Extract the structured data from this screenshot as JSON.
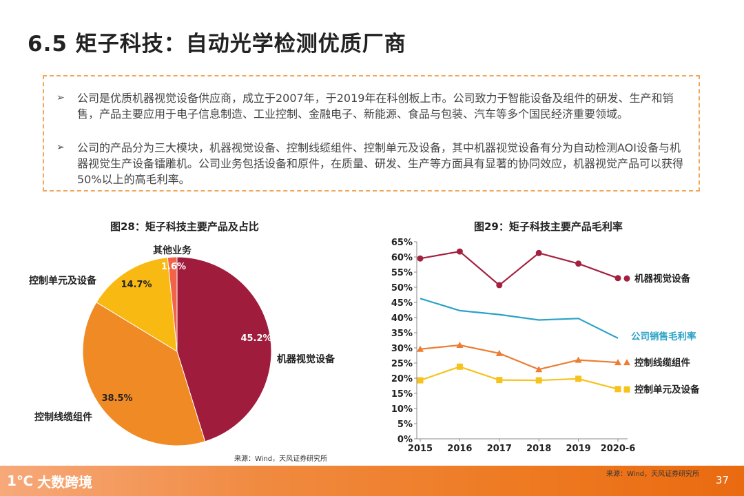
{
  "header": {
    "title": "6.5  矩子科技：自动光学检测优质厂商"
  },
  "bullets": [
    {
      "marker": "➢",
      "text": "公司是优质机器视觉设备供应商，成立于2007年，于2019年在科创板上市。公司致力于智能设备及组件的研发、生产和销售，产品主要应用于电子信息制造、工业控制、金融电子、新能源、食品与包装、汽车等多个国民经济重要领域。"
    },
    {
      "marker": "➢",
      "text": "公司的产品分为三大模块，机器视觉设备、控制线缆组件、控制单元及设备，其中机器视觉设备有分为自动检测AOI设备与机器视觉生产设备镭雕机。公司业务包括设备和原件，在质量、研发、生产等方面具有显著的协同效应，机器视觉产品可以获得50%以上的高毛利率。"
    }
  ],
  "chart_data": [
    {
      "type": "pie",
      "title": "图28：矩子科技主要产品及占比",
      "slices": [
        {
          "label": "机器视觉设备",
          "value": 45.2,
          "value_label": "45.2%",
          "color": "#a01c3c"
        },
        {
          "label": "控制线缆组件",
          "value": 38.5,
          "value_label": "38.5%",
          "color": "#f08a24"
        },
        {
          "label": "控制单元及设备",
          "value": 14.7,
          "value_label": "14.7%",
          "color": "#f9b913"
        },
        {
          "label": "其他业务",
          "value": 1.6,
          "value_label": "1.6%",
          "color": "#f2644a"
        }
      ],
      "source": "来源：Wind，天风证券研究所"
    },
    {
      "type": "line",
      "title": "图29：矩子科技主要产品毛利率",
      "categories": [
        "2015",
        "2016",
        "2017",
        "2018",
        "2019",
        "2020-6"
      ],
      "ylim": [
        0,
        65
      ],
      "yticks": [
        "0%",
        "5%",
        "10%",
        "15%",
        "20%",
        "25%",
        "30%",
        "35%",
        "40%",
        "45%",
        "50%",
        "55%",
        "60%",
        "65%"
      ],
      "series": [
        {
          "name": "机器视觉设备",
          "values": [
            59.5,
            61.8,
            50.7,
            61.3,
            57.8,
            53.0
          ],
          "color": "#a3213f",
          "marker": "circle"
        },
        {
          "name": "公司销售毛利率",
          "values": [
            46.3,
            42.3,
            41.0,
            39.2,
            39.7,
            33.2
          ],
          "color": "#2aa2c6",
          "marker": "none"
        },
        {
          "name": "控制线缆组件",
          "values": [
            29.6,
            30.9,
            28.2,
            22.9,
            26.0,
            25.2
          ],
          "color": "#ec7d32",
          "marker": "triangle"
        },
        {
          "name": "控制单元及设备",
          "values": [
            19.3,
            23.8,
            19.4,
            19.3,
            19.8,
            16.4
          ],
          "color": "#f7c21c",
          "marker": "square"
        }
      ],
      "source": "来源：Wind，天风证券研究所"
    }
  ],
  "footer": {
    "logo_mark": "1℃",
    "logo_text": "大数跨境",
    "page": "37"
  }
}
